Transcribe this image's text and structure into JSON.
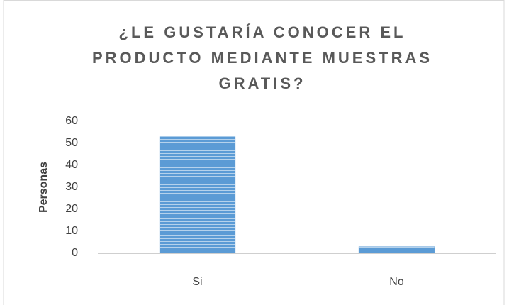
{
  "chart_data": {
    "type": "bar",
    "title": "¿LE GUSTARÍA CONOCER EL PRODUCTO MEDIANTE MUESTRAS GRATIS?",
    "y_label": "Personas",
    "categories": [
      "Si",
      "No"
    ],
    "values": [
      53,
      3
    ],
    "color": "#5b9bd5",
    "ylim": [
      0,
      60
    ],
    "yticks": [
      0,
      10,
      20,
      30,
      40,
      50,
      60
    ],
    "grid": false
  }
}
